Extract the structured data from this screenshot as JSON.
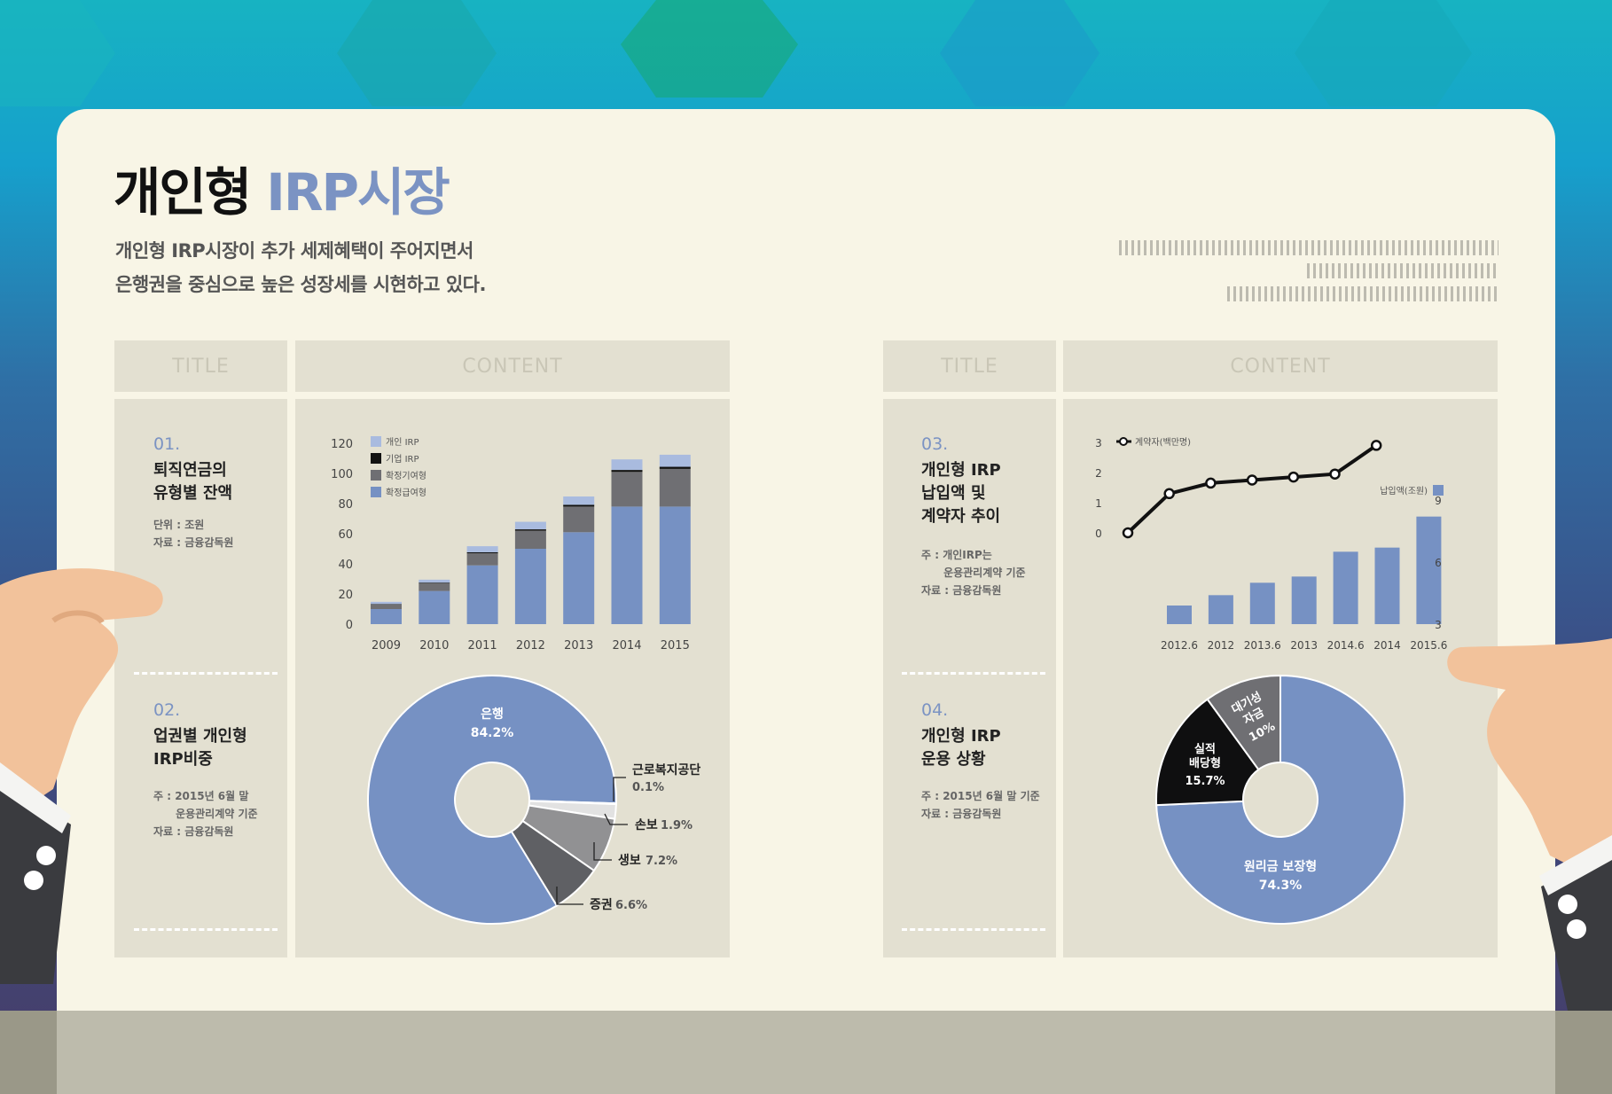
{
  "header": {
    "title_dark": "개인형",
    "title_accent": "IRP시장",
    "subtitle_line1": "개인형 IRP시장이 추가 세제혜택이 주어지면서",
    "subtitle_line2": "은행권을 중심으로 높은 성장세를 시현하고 있다."
  },
  "left": {
    "head_title": "TITLE",
    "head_content": "CONTENT"
  },
  "right": {
    "head_title": "TITLE",
    "head_content": "CONTENT"
  },
  "sections": [
    {
      "num": "01.",
      "title": "퇴직연금의\n유형별 잔액",
      "note": "단위 : 조원\n자료 : 금융감독원"
    },
    {
      "num": "02.",
      "title": "업권별 개인형\nIRP비중",
      "note": "주 : 2015년 6월 말\n      운용관리계약 기준\n자료 : 금융감독원"
    },
    {
      "num": "03.",
      "title": "개인형 IRP\n납입액 및\n계약자 추이",
      "note": "주 : 개인IRP는\n      운용관리계약 기준\n자료 : 금융감독원"
    },
    {
      "num": "04.",
      "title": "개인형 IRP\n운용 상황",
      "note": "주 : 2015년 6월 말 기준\n자료 : 금융감독원"
    }
  ],
  "colors": {
    "blue": "#7691c3",
    "gray": "#6f6f73",
    "black": "#111111",
    "lightblue": "#a9bbdf",
    "bg": "#e3e0d1"
  },
  "chart_data": [
    {
      "type": "bar",
      "stacked": true,
      "categories": [
        "2009",
        "2010",
        "2011",
        "2012",
        "2013",
        "2014",
        "2015"
      ],
      "series": [
        {
          "name": "확정급여형",
          "color": "#7691c3",
          "values": [
            10,
            22,
            39,
            50,
            61,
            78,
            78
          ]
        },
        {
          "name": "확정기여형",
          "color": "#6f6f73",
          "values": [
            3,
            5,
            8,
            12,
            17,
            23,
            25
          ]
        },
        {
          "name": "기업 IRP",
          "color": "#111111",
          "values": [
            0.3,
            0.5,
            0.7,
            0.9,
            1.2,
            1.3,
            1.4
          ]
        },
        {
          "name": "개인 IRP",
          "color": "#a9bbdf",
          "values": [
            1.5,
            2,
            4,
            5,
            5.5,
            7,
            8
          ]
        }
      ],
      "yticks": [
        "120",
        "100",
        "80",
        "60",
        "40",
        "20",
        "0"
      ],
      "ylim": [
        0,
        120
      ]
    },
    {
      "type": "pie",
      "slices": [
        {
          "label": "은행",
          "value": 84.2,
          "value_text": "84.2%",
          "color": "#7691c3"
        },
        {
          "label": "근로복지공단",
          "value": 0.1,
          "value_text": "0.1%",
          "color": "#111111"
        },
        {
          "label": "손보",
          "value": 1.9,
          "value_text": "1.9%",
          "color": "#e2e2e2"
        },
        {
          "label": "생보",
          "value": 7.2,
          "value_text": "7.2%",
          "color": "#919193"
        },
        {
          "label": "증권",
          "value": 6.6,
          "value_text": "6.6%",
          "color": "#5f6064"
        }
      ]
    },
    {
      "type": "bar+line",
      "categories": [
        "2012.6",
        "2012",
        "2013.6",
        "2013",
        "2014.6",
        "2014",
        "2015.6"
      ],
      "bar_series": {
        "name": "납입액(조원)",
        "color": "#7691c3",
        "values": [
          3.9,
          4.4,
          5.0,
          5.3,
          6.5,
          6.7,
          8.2
        ]
      },
      "line_series": {
        "name": "계약자(백만명)",
        "values": [
          0,
          1.3,
          1.65,
          1.75,
          1.85,
          1.95,
          2.9
        ]
      },
      "left_yticks": [
        "3",
        "2",
        "1",
        "0"
      ],
      "right_yticks": [
        "9",
        "6",
        "3"
      ],
      "left_ylim": [
        0,
        3
      ],
      "right_ylim": [
        3,
        9
      ]
    },
    {
      "type": "pie",
      "slices": [
        {
          "label": "원리금 보장형",
          "value": 74.3,
          "value_text": "74.3%",
          "color": "#7691c3"
        },
        {
          "label": "실적\n배당형",
          "value": 15.7,
          "value_text": "15.7%",
          "color": "#0f0f10"
        },
        {
          "label": "대기성\n자금",
          "value": 10,
          "value_text": "10%",
          "color": "#6f6f73"
        }
      ]
    }
  ]
}
